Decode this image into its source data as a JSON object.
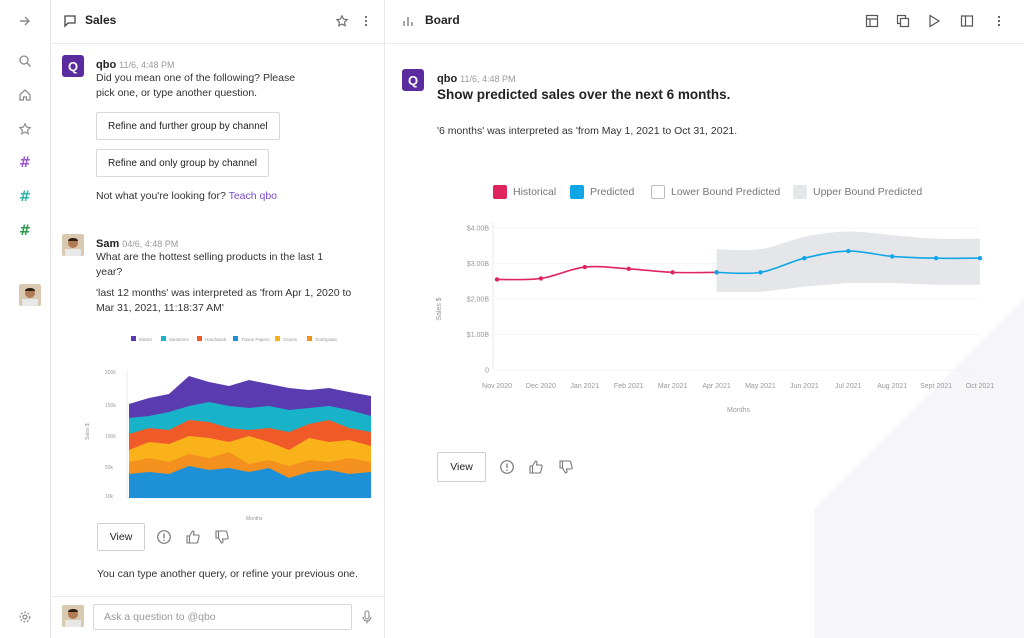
{
  "rail": {
    "icons": [
      "arrow-right-icon",
      "search-icon",
      "home-icon",
      "star-icon",
      "hash-icon",
      "hash-icon",
      "hash-icon",
      "settings-icon"
    ],
    "hash_colors": [
      "#9b59d0",
      "#2fb5a8",
      "#2e9a4f"
    ]
  },
  "chat": {
    "title": "Sales",
    "messages": {
      "qbo": {
        "avatar_letter": "Q",
        "name": "qbo",
        "time": "11/6, 4:48 PM",
        "text_line1": "Did you mean one of the following? Please",
        "text_line2": "pick one, or type another question.",
        "option1": "Refine and further group by channel",
        "option2": "Refine and only group by channel",
        "not_what": "Not what you're looking for?",
        "teach_link": "Teach qbo"
      },
      "sam": {
        "name": "Sam",
        "time": "04/6, 4:48 PM",
        "q_line1": "What are the hottest selling products in the last 1",
        "q_line2": "year?",
        "interp_line1": "'last 12 months' was interpreted as 'from Apr 1, 2020 to",
        "interp_line2": "Mar 31, 2021, 11:18:37 AM'"
      }
    },
    "mini_chart": {
      "legend": [
        "Masks",
        "Sanitizers",
        "Handwash",
        "Tissue Papers",
        "Gloves",
        "Toothpaste"
      ],
      "colors": [
        "#5b3bb0",
        "#18b3c8",
        "#f05a28",
        "#1e90d8",
        "#f9b21a",
        "#f4901e"
      ],
      "y_ticks": [
        "200k",
        "150k",
        "100k",
        "50k",
        "10k"
      ],
      "ylabel": "Sales $",
      "xlabel": "Months"
    },
    "view_label": "View",
    "footer_text": "You can type another query, or refine your previous one.",
    "input_placeholder": "Ask a question to @qbo"
  },
  "board": {
    "title": "Board",
    "message": {
      "avatar_letter": "Q",
      "name": "qbo",
      "time": "11/6, 4:48 PM",
      "question": "Show predicted sales over the next 6 months.",
      "interpretation": "'6 months' was interpreted as 'from May 1, 2021 to Oct 31, 2021."
    },
    "view_label": "View"
  },
  "chart_data": {
    "type": "line",
    "title": "",
    "xlabel": "Months",
    "ylabel": "Sales $",
    "categories": [
      "Nov 2020",
      "Dec 2020",
      "Jan 2021",
      "Feb 2021",
      "Mar 2021",
      "Apr 2021",
      "May 2021",
      "Jun 2021",
      "Jul 2021",
      "Aug 2021",
      "Sept 2021",
      "Oct 2021"
    ],
    "y_ticks": [
      "0",
      "$1.00B",
      "$2.00B",
      "$3.00B",
      "$4.00B"
    ],
    "ylim": [
      0,
      4.0
    ],
    "series": [
      {
        "name": "Historical",
        "color": "#e0245e",
        "values": [
          2.55,
          2.58,
          2.9,
          2.85,
          2.75,
          2.75,
          null,
          null,
          null,
          null,
          null,
          null
        ]
      },
      {
        "name": "Predicted",
        "color": "#0fa6e8",
        "values": [
          null,
          null,
          null,
          null,
          null,
          2.75,
          2.75,
          3.15,
          3.35,
          3.2,
          3.15,
          3.15
        ]
      },
      {
        "name": "Lower Bound Predicted",
        "color": "#ffffff",
        "values": [
          null,
          null,
          null,
          null,
          null,
          2.2,
          2.2,
          2.35,
          2.45,
          2.45,
          2.4,
          2.4
        ]
      },
      {
        "name": "Upper Bound Predicted",
        "color": "#e4e6ea",
        "values": [
          null,
          null,
          null,
          null,
          null,
          3.4,
          3.4,
          3.75,
          3.9,
          3.8,
          3.7,
          3.7
        ]
      }
    ],
    "legend": "top"
  }
}
